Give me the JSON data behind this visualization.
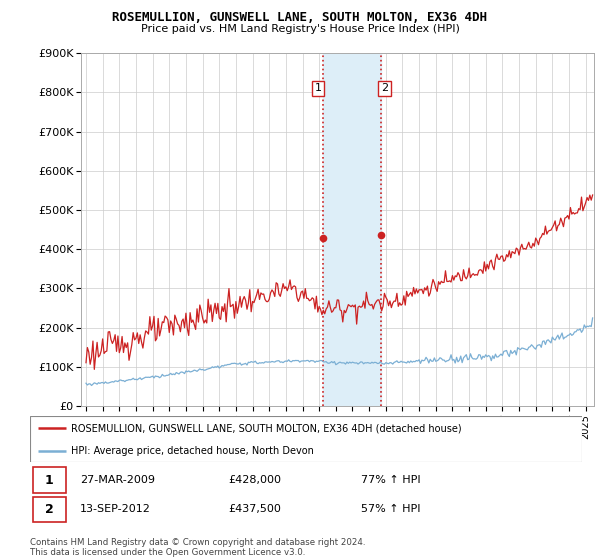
{
  "title": "ROSEMULLION, GUNSWELL LANE, SOUTH MOLTON, EX36 4DH",
  "subtitle": "Price paid vs. HM Land Registry's House Price Index (HPI)",
  "legend_line1": "ROSEMULLION, GUNSWELL LANE, SOUTH MOLTON, EX36 4DH (detached house)",
  "legend_line2": "HPI: Average price, detached house, North Devon",
  "transaction1": {
    "num": "1",
    "date": "27-MAR-2009",
    "price": "£428,000",
    "hpi": "77% ↑ HPI"
  },
  "transaction2": {
    "num": "2",
    "date": "13-SEP-2012",
    "price": "£437,500",
    "hpi": "57% ↑ HPI"
  },
  "copyright": "Contains HM Land Registry data © Crown copyright and database right 2024.\nThis data is licensed under the Open Government Licence v3.0.",
  "red_color": "#cc2222",
  "blue_color": "#7bafd4",
  "shaded_color": "#ddeef8",
  "marker_x1": 2009.23,
  "marker_x2": 2012.71,
  "marker_y1": 428000,
  "marker_y2": 437500,
  "ylim": [
    0,
    900000
  ],
  "xlim_start": 1994.7,
  "xlim_end": 2025.5
}
